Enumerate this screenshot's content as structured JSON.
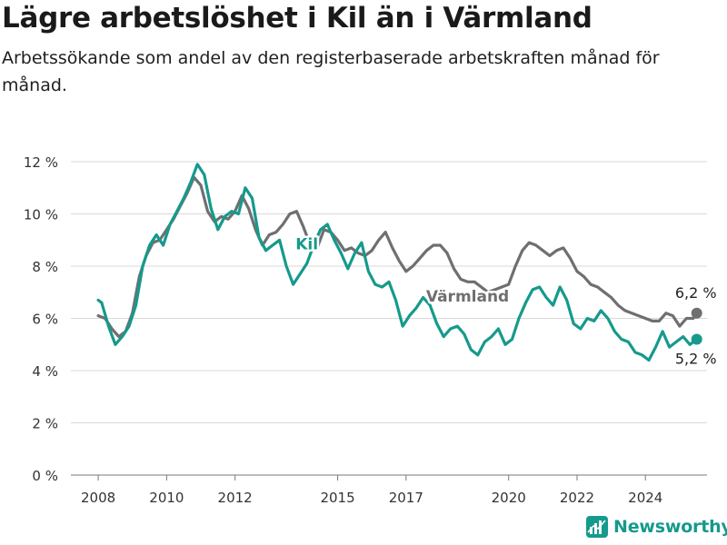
{
  "header": {
    "title": "Lägre arbetslöshet i Kil än i Värmland",
    "subtitle": "Arbetssökande som andel av den registerbaserade arbetskraften månad för månad."
  },
  "brand": {
    "name": "Newsworthy",
    "color": "#159a8c"
  },
  "chart_data": {
    "type": "line",
    "title": "Lägre arbetslöshet i Kil än i Värmland",
    "subtitle": "Arbetssökande som andel av den registerbaserade arbetskraften månad för månad.",
    "x_range": [
      2007.2,
      2025.8
    ],
    "ylim": [
      0,
      12
    ],
    "y_ticks": [
      0,
      2,
      4,
      6,
      8,
      10,
      12
    ],
    "y_tick_labels": [
      "0 %",
      "2 %",
      "4 %",
      "6 %",
      "8 %",
      "10 %",
      "12 %"
    ],
    "x_ticks": [
      2008,
      2010,
      2012,
      2015,
      2017,
      2020,
      2022,
      2024
    ],
    "x_tick_labels": [
      "2008",
      "2010",
      "2012",
      "2015",
      "2017",
      "2020",
      "2022",
      "2024"
    ],
    "grid": true,
    "series": [
      {
        "name": "Värmland",
        "color": "#6f6f72",
        "label_at": [
          2018.8,
          6.65
        ],
        "end_label": "6,2 %",
        "points": [
          [
            2008.0,
            6.1
          ],
          [
            2008.2,
            6.0
          ],
          [
            2008.4,
            5.6
          ],
          [
            2008.6,
            5.3
          ],
          [
            2008.8,
            5.5
          ],
          [
            2009.0,
            6.2
          ],
          [
            2009.2,
            7.6
          ],
          [
            2009.4,
            8.4
          ],
          [
            2009.6,
            8.9
          ],
          [
            2009.8,
            9.0
          ],
          [
            2010.0,
            9.4
          ],
          [
            2010.2,
            9.8
          ],
          [
            2010.4,
            10.3
          ],
          [
            2010.6,
            10.8
          ],
          [
            2010.8,
            11.4
          ],
          [
            2011.0,
            11.1
          ],
          [
            2011.2,
            10.1
          ],
          [
            2011.4,
            9.7
          ],
          [
            2011.6,
            9.9
          ],
          [
            2011.8,
            9.8
          ],
          [
            2012.0,
            10.1
          ],
          [
            2012.2,
            10.7
          ],
          [
            2012.4,
            10.2
          ],
          [
            2012.6,
            9.4
          ],
          [
            2012.8,
            8.8
          ],
          [
            2013.0,
            9.2
          ],
          [
            2013.2,
            9.3
          ],
          [
            2013.4,
            9.6
          ],
          [
            2013.6,
            10.0
          ],
          [
            2013.8,
            10.1
          ],
          [
            2014.0,
            9.5
          ],
          [
            2014.2,
            8.8
          ],
          [
            2014.4,
            8.7
          ],
          [
            2014.6,
            9.4
          ],
          [
            2014.8,
            9.3
          ],
          [
            2015.0,
            9.0
          ],
          [
            2015.2,
            8.6
          ],
          [
            2015.4,
            8.7
          ],
          [
            2015.6,
            8.5
          ],
          [
            2015.8,
            8.4
          ],
          [
            2016.0,
            8.6
          ],
          [
            2016.2,
            9.0
          ],
          [
            2016.4,
            9.3
          ],
          [
            2016.6,
            8.7
          ],
          [
            2016.8,
            8.2
          ],
          [
            2017.0,
            7.8
          ],
          [
            2017.2,
            8.0
          ],
          [
            2017.4,
            8.3
          ],
          [
            2017.6,
            8.6
          ],
          [
            2017.8,
            8.8
          ],
          [
            2018.0,
            8.8
          ],
          [
            2018.2,
            8.5
          ],
          [
            2018.4,
            7.9
          ],
          [
            2018.6,
            7.5
          ],
          [
            2018.8,
            7.4
          ],
          [
            2019.0,
            7.4
          ],
          [
            2019.2,
            7.2
          ],
          [
            2019.4,
            7.0
          ],
          [
            2019.6,
            7.1
          ],
          [
            2019.8,
            7.2
          ],
          [
            2020.0,
            7.3
          ],
          [
            2020.2,
            8.0
          ],
          [
            2020.4,
            8.6
          ],
          [
            2020.6,
            8.9
          ],
          [
            2020.8,
            8.8
          ],
          [
            2021.0,
            8.6
          ],
          [
            2021.2,
            8.4
          ],
          [
            2021.4,
            8.6
          ],
          [
            2021.6,
            8.7
          ],
          [
            2021.8,
            8.3
          ],
          [
            2022.0,
            7.8
          ],
          [
            2022.2,
            7.6
          ],
          [
            2022.4,
            7.3
          ],
          [
            2022.6,
            7.2
          ],
          [
            2022.8,
            7.0
          ],
          [
            2023.0,
            6.8
          ],
          [
            2023.2,
            6.5
          ],
          [
            2023.4,
            6.3
          ],
          [
            2023.6,
            6.2
          ],
          [
            2023.8,
            6.1
          ],
          [
            2024.0,
            6.0
          ],
          [
            2024.2,
            5.9
          ],
          [
            2024.4,
            5.9
          ],
          [
            2024.6,
            6.2
          ],
          [
            2024.8,
            6.1
          ],
          [
            2025.0,
            5.7
          ],
          [
            2025.2,
            6.0
          ],
          [
            2025.4,
            6.0
          ],
          [
            2025.5,
            6.2
          ]
        ]
      },
      {
        "name": "Kil",
        "color": "#159a8c",
        "label_at": [
          2014.1,
          8.65
        ],
        "end_label": "5,2 %",
        "points": [
          [
            2008.0,
            6.7
          ],
          [
            2008.1,
            6.6
          ],
          [
            2008.3,
            5.7
          ],
          [
            2008.5,
            5.0
          ],
          [
            2008.7,
            5.3
          ],
          [
            2008.9,
            5.7
          ],
          [
            2009.1,
            6.5
          ],
          [
            2009.3,
            8.0
          ],
          [
            2009.5,
            8.8
          ],
          [
            2009.7,
            9.2
          ],
          [
            2009.9,
            8.8
          ],
          [
            2010.1,
            9.6
          ],
          [
            2010.3,
            10.1
          ],
          [
            2010.5,
            10.6
          ],
          [
            2010.7,
            11.2
          ],
          [
            2010.9,
            11.9
          ],
          [
            2011.1,
            11.5
          ],
          [
            2011.3,
            10.2
          ],
          [
            2011.5,
            9.4
          ],
          [
            2011.7,
            9.9
          ],
          [
            2011.9,
            10.1
          ],
          [
            2012.1,
            10.0
          ],
          [
            2012.3,
            11.0
          ],
          [
            2012.5,
            10.6
          ],
          [
            2012.7,
            9.1
          ],
          [
            2012.9,
            8.6
          ],
          [
            2013.1,
            8.8
          ],
          [
            2013.3,
            9.0
          ],
          [
            2013.5,
            8.0
          ],
          [
            2013.7,
            7.3
          ],
          [
            2013.9,
            7.7
          ],
          [
            2014.1,
            8.1
          ],
          [
            2014.3,
            8.8
          ],
          [
            2014.5,
            9.4
          ],
          [
            2014.7,
            9.6
          ],
          [
            2014.9,
            9.0
          ],
          [
            2015.1,
            8.5
          ],
          [
            2015.3,
            7.9
          ],
          [
            2015.5,
            8.5
          ],
          [
            2015.7,
            8.9
          ],
          [
            2015.9,
            7.8
          ],
          [
            2016.1,
            7.3
          ],
          [
            2016.3,
            7.2
          ],
          [
            2016.5,
            7.4
          ],
          [
            2016.7,
            6.7
          ],
          [
            2016.9,
            5.7
          ],
          [
            2017.1,
            6.1
          ],
          [
            2017.3,
            6.4
          ],
          [
            2017.5,
            6.8
          ],
          [
            2017.7,
            6.5
          ],
          [
            2017.9,
            5.8
          ],
          [
            2018.1,
            5.3
          ],
          [
            2018.3,
            5.6
          ],
          [
            2018.5,
            5.7
          ],
          [
            2018.7,
            5.4
          ],
          [
            2018.9,
            4.8
          ],
          [
            2019.1,
            4.6
          ],
          [
            2019.3,
            5.1
          ],
          [
            2019.5,
            5.3
          ],
          [
            2019.7,
            5.6
          ],
          [
            2019.9,
            5.0
          ],
          [
            2020.1,
            5.2
          ],
          [
            2020.3,
            6.0
          ],
          [
            2020.5,
            6.6
          ],
          [
            2020.7,
            7.1
          ],
          [
            2020.9,
            7.2
          ],
          [
            2021.1,
            6.8
          ],
          [
            2021.3,
            6.5
          ],
          [
            2021.5,
            7.2
          ],
          [
            2021.7,
            6.7
          ],
          [
            2021.9,
            5.8
          ],
          [
            2022.1,
            5.6
          ],
          [
            2022.3,
            6.0
          ],
          [
            2022.5,
            5.9
          ],
          [
            2022.7,
            6.3
          ],
          [
            2022.9,
            6.0
          ],
          [
            2023.1,
            5.5
          ],
          [
            2023.3,
            5.2
          ],
          [
            2023.5,
            5.1
          ],
          [
            2023.7,
            4.7
          ],
          [
            2023.9,
            4.6
          ],
          [
            2024.1,
            4.4
          ],
          [
            2024.3,
            4.9
          ],
          [
            2024.5,
            5.5
          ],
          [
            2024.7,
            4.9
          ],
          [
            2024.9,
            5.1
          ],
          [
            2025.1,
            5.3
          ],
          [
            2025.3,
            5.0
          ],
          [
            2025.5,
            5.2
          ]
        ]
      }
    ]
  }
}
